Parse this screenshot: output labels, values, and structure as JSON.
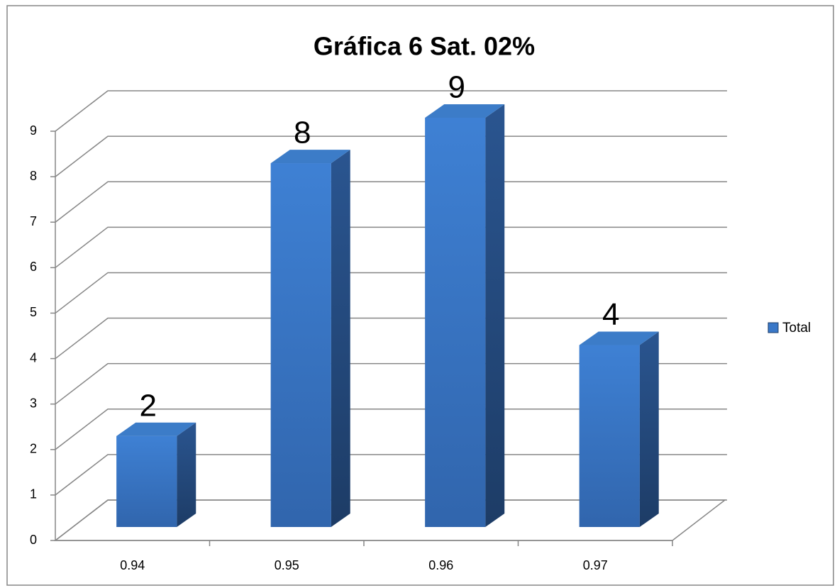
{
  "chart_data": {
    "type": "bar3d",
    "title": "Gráfica 6 Sat. 02%",
    "categories": [
      "0.94",
      "0.95",
      "0.96",
      "0.97"
    ],
    "series": [
      {
        "name": "Total",
        "color": "#3a78c8",
        "values": [
          2,
          8,
          9,
          4
        ]
      }
    ],
    "ylim": [
      0,
      9
    ],
    "yticks": [
      0,
      1,
      2,
      3,
      4,
      5,
      6,
      7,
      8,
      9
    ],
    "grid": true,
    "legend": "right"
  }
}
